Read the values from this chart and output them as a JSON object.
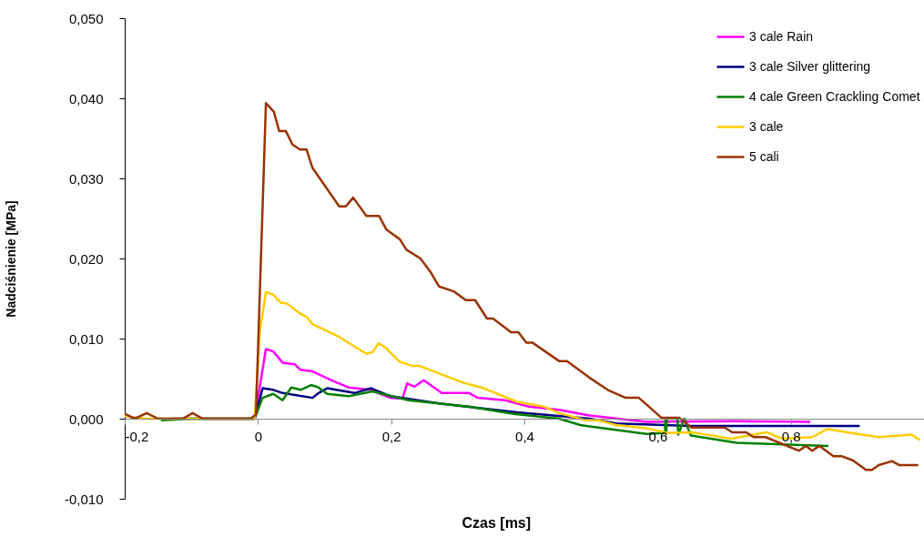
{
  "chart_data": {
    "type": "line",
    "xlabel": "Czas [ms]",
    "ylabel": "Nadciśnienie [MPa]",
    "xlim": [
      -0.2,
      1.0
    ],
    "ylim": [
      -0.01,
      0.05
    ],
    "xticks": [
      {
        "value": -0.2,
        "label": "-0,2"
      },
      {
        "value": 0,
        "label": "0"
      },
      {
        "value": 0.2,
        "label": "0,2"
      },
      {
        "value": 0.4,
        "label": "0,4"
      },
      {
        "value": 0.6,
        "label": "0,6"
      },
      {
        "value": 0.8,
        "label": "0,8"
      }
    ],
    "yticks": [
      {
        "value": -0.01,
        "label": "-0,010"
      },
      {
        "value": 0,
        "label": "0,000"
      },
      {
        "value": 0.01,
        "label": "0,010"
      },
      {
        "value": 0.02,
        "label": "0,020"
      },
      {
        "value": 0.03,
        "label": "0,030"
      },
      {
        "value": 0.04,
        "label": "0,040"
      },
      {
        "value": 0.05,
        "label": "0,050"
      }
    ],
    "grid": false,
    "legend": "top right",
    "line_style": "solid",
    "marker": "none",
    "series": [
      {
        "name": "3 cale Rain",
        "color": "#ff00ff",
        "x": [
          -0.005,
          0.012,
          0.023,
          0.037,
          0.055,
          0.064,
          0.082,
          0.113,
          0.136,
          0.168,
          0.199,
          0.217,
          0.224,
          0.235,
          0.249,
          0.276,
          0.317,
          0.33,
          0.371,
          0.407,
          0.452,
          0.498,
          0.583,
          0.719,
          0.828
        ],
        "values": [
          0,
          0.0087,
          0.0084,
          0.007,
          0.0068,
          0.0061,
          0.0059,
          0.0047,
          0.0039,
          0.0036,
          0.0026,
          0.0025,
          0.0044,
          0.004,
          0.0048,
          0.0032,
          0.0032,
          0.0026,
          0.0023,
          0.0015,
          0.0011,
          0.0004,
          -0.0004,
          -0.0003,
          -0.0004
        ]
      },
      {
        "name": "3 cale Silver glittering",
        "color": "#000080",
        "x": [
          -0.13,
          -0.05,
          -0.005,
          0.007,
          0.023,
          0.037,
          0.082,
          0.091,
          0.104,
          0.145,
          0.17,
          0.199,
          0.272,
          0.389,
          0.498,
          0.538,
          0.651,
          0.764,
          0.902
        ],
        "values": [
          0,
          0,
          0,
          0.0038,
          0.0036,
          0.0032,
          0.0026,
          0.0032,
          0.0038,
          0.0032,
          0.0038,
          0.0028,
          0.0019,
          0.0008,
          0,
          -0.0006,
          -0.0009,
          -0.0009,
          -0.0009
        ]
      },
      {
        "name": "4 cale Green Crackling Comet",
        "color": "#008000",
        "x": [
          -0.144,
          -0.1,
          -0.05,
          -0.005,
          0.007,
          0.023,
          0.037,
          0.05,
          0.064,
          0.08,
          0.091,
          0.104,
          0.136,
          0.172,
          0.226,
          0.317,
          0.384,
          0.452,
          0.484,
          0.493,
          0.583,
          0.611,
          0.612,
          0.613,
          0.614,
          0.63,
          0.631,
          0.64,
          0.65,
          0.719,
          0.855
        ],
        "values": [
          -0.0002,
          0,
          0,
          0,
          0.0026,
          0.0031,
          0.0023,
          0.0039,
          0.0036,
          0.0042,
          0.0039,
          0.0031,
          0.0028,
          0.0034,
          0.0023,
          0.0015,
          0.0006,
          0,
          -0.0008,
          -0.0009,
          -0.0019,
          -0.0018,
          0,
          -0.0019,
          0,
          0,
          -0.002,
          0,
          -0.0021,
          -0.003,
          -0.0034
        ]
      },
      {
        "name": "3 cale",
        "color": "#ffcc00",
        "x": [
          -0.2,
          -0.17,
          -0.1,
          -0.005,
          0.003,
          0.012,
          0.023,
          0.034,
          0.043,
          0.064,
          0.073,
          0.082,
          0.122,
          0.163,
          0.172,
          0.181,
          0.19,
          0.213,
          0.231,
          0.242,
          0.308,
          0.339,
          0.389,
          0.43,
          0.452,
          0.493,
          0.511,
          0.538,
          0.583,
          0.615,
          0.651,
          0.71,
          0.764,
          0.787,
          0.832,
          0.855,
          0.9,
          0.932,
          0.981,
          0.993
        ],
        "values": [
          0.0003,
          0,
          0,
          0,
          0.011,
          0.0158,
          0.0155,
          0.0145,
          0.0144,
          0.0131,
          0.0127,
          0.0118,
          0.0102,
          0.0081,
          0.0083,
          0.0094,
          0.009,
          0.0071,
          0.0066,
          0.0066,
          0.0045,
          0.0038,
          0.0021,
          0.0015,
          0.0007,
          -0.0002,
          -0.0002,
          -0.0008,
          -0.0012,
          -0.0018,
          -0.0017,
          -0.0025,
          -0.0017,
          -0.0025,
          -0.0023,
          -0.0013,
          -0.0019,
          -0.0023,
          -0.002,
          -0.0026
        ]
      },
      {
        "name": "5 cali",
        "color": "#993300",
        "x": [
          -0.2,
          -0.185,
          -0.167,
          -0.15,
          -0.113,
          -0.098,
          -0.083,
          -0.011,
          -0.003,
          0.012,
          0.024,
          0.032,
          0.042,
          0.052,
          0.063,
          0.073,
          0.082,
          0.122,
          0.132,
          0.143,
          0.163,
          0.182,
          0.193,
          0.213,
          0.223,
          0.244,
          0.26,
          0.272,
          0.294,
          0.312,
          0.326,
          0.344,
          0.353,
          0.38,
          0.391,
          0.403,
          0.412,
          0.452,
          0.464,
          0.498,
          0.525,
          0.552,
          0.572,
          0.606,
          0.633,
          0.651,
          0.701,
          0.712,
          0.733,
          0.744,
          0.762,
          0.812,
          0.823,
          0.832,
          0.843,
          0.864,
          0.877,
          0.893,
          0.913,
          0.922,
          0.932,
          0.952,
          0.963,
          0.99
        ],
        "values": [
          0.0006,
          0,
          0.0007,
          0,
          0,
          0.0007,
          0,
          0,
          0.0005,
          0.0394,
          0.0383,
          0.0359,
          0.0359,
          0.0342,
          0.0336,
          0.0336,
          0.0313,
          0.0265,
          0.0265,
          0.0276,
          0.0253,
          0.0253,
          0.0236,
          0.0224,
          0.0211,
          0.02,
          0.0182,
          0.0165,
          0.0159,
          0.0148,
          0.0148,
          0.0125,
          0.0125,
          0.0108,
          0.0108,
          0.0095,
          0.0095,
          0.0072,
          0.0072,
          0.0051,
          0.0036,
          0.0026,
          0.0026,
          0.0001,
          0.0001,
          -0.0011,
          -0.0011,
          -0.0017,
          -0.0017,
          -0.0023,
          -0.0023,
          -0.004,
          -0.0034,
          -0.004,
          -0.0034,
          -0.0047,
          -0.0047,
          -0.0052,
          -0.0064,
          -0.0064,
          -0.0058,
          -0.0053,
          -0.0058,
          -0.0058
        ]
      }
    ]
  }
}
